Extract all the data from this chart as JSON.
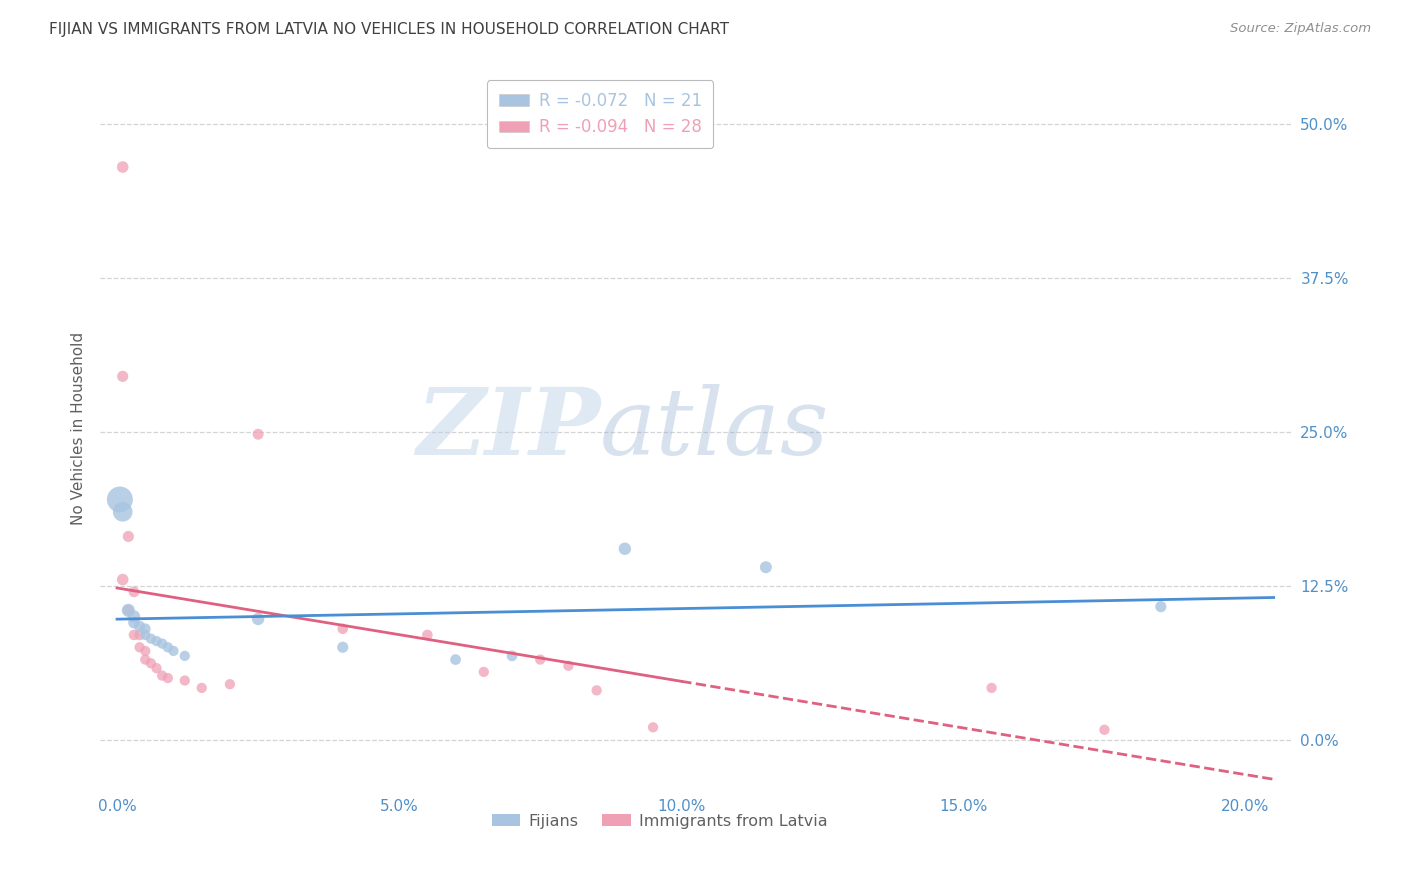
{
  "title": "FIJIAN VS IMMIGRANTS FROM LATVIA NO VEHICLES IN HOUSEHOLD CORRELATION CHART",
  "source": "Source: ZipAtlas.com",
  "ylabel": "No Vehicles in Household",
  "xlabel_vals": [
    0.0,
    0.05,
    0.1,
    0.15,
    0.2
  ],
  "ylabel_vals": [
    0.0,
    0.125,
    0.25,
    0.375,
    0.5
  ],
  "ylabel_labels": [
    "0.0%",
    "12.5%",
    "25.0%",
    "37.5%",
    "50.0%"
  ],
  "xlim": [
    -0.003,
    0.208
  ],
  "ylim": [
    -0.04,
    0.545
  ],
  "watermark_zip": "ZIP",
  "watermark_atlas": "atlas",
  "legend_entries": [
    {
      "label": "Fijians",
      "color": "#a8c4e0",
      "R": -0.072,
      "N": 21
    },
    {
      "label": "Immigrants from Latvia",
      "color": "#f0a0b5",
      "R": -0.094,
      "N": 28
    }
  ],
  "fijians_x": [
    0.0005,
    0.001,
    0.002,
    0.003,
    0.003,
    0.004,
    0.005,
    0.005,
    0.006,
    0.007,
    0.008,
    0.009,
    0.01,
    0.012,
    0.025,
    0.04,
    0.06,
    0.07,
    0.09,
    0.115,
    0.185
  ],
  "fijians_y": [
    0.195,
    0.185,
    0.105,
    0.1,
    0.095,
    0.092,
    0.09,
    0.085,
    0.082,
    0.08,
    0.078,
    0.075,
    0.072,
    0.068,
    0.098,
    0.075,
    0.065,
    0.068,
    0.155,
    0.14,
    0.108
  ],
  "fijians_sizes": [
    350,
    200,
    90,
    80,
    70,
    65,
    60,
    55,
    55,
    55,
    55,
    55,
    55,
    55,
    80,
    65,
    60,
    60,
    80,
    75,
    65
  ],
  "latvia_x": [
    0.001,
    0.001,
    0.001,
    0.002,
    0.002,
    0.003,
    0.003,
    0.004,
    0.004,
    0.005,
    0.005,
    0.006,
    0.007,
    0.008,
    0.009,
    0.012,
    0.015,
    0.02,
    0.025,
    0.04,
    0.055,
    0.065,
    0.075,
    0.08,
    0.085,
    0.095,
    0.155,
    0.175
  ],
  "latvia_y": [
    0.465,
    0.295,
    0.13,
    0.165,
    0.105,
    0.12,
    0.085,
    0.085,
    0.075,
    0.072,
    0.065,
    0.062,
    0.058,
    0.052,
    0.05,
    0.048,
    0.042,
    0.045,
    0.248,
    0.09,
    0.085,
    0.055,
    0.065,
    0.06,
    0.04,
    0.01,
    0.042,
    0.008
  ],
  "latvia_sizes": [
    70,
    65,
    70,
    65,
    60,
    60,
    58,
    58,
    55,
    55,
    55,
    55,
    55,
    55,
    55,
    55,
    55,
    55,
    62,
    58,
    58,
    55,
    55,
    55,
    55,
    55,
    55,
    55
  ],
  "fijians_line_color": "#4a8fd4",
  "latvia_line_color": "#e06080",
  "fijians_dot_color": "#a8c4e0",
  "latvia_dot_color": "#f0a0b5",
  "background_color": "#ffffff",
  "grid_color": "#d0d0d0",
  "title_color": "#404040",
  "axis_label_color": "#606060",
  "tick_color": "#5090c8",
  "source_color": "#909090"
}
